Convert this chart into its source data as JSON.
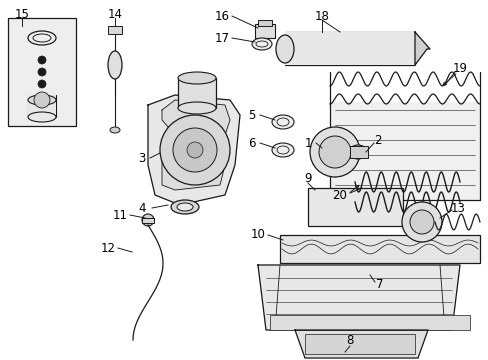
{
  "bg_color": "#ffffff",
  "fig_width": 4.89,
  "fig_height": 3.6,
  "dpi": 100,
  "line_color": "#1a1a1a",
  "text_color": "#000000",
  "font_size": 8.5
}
